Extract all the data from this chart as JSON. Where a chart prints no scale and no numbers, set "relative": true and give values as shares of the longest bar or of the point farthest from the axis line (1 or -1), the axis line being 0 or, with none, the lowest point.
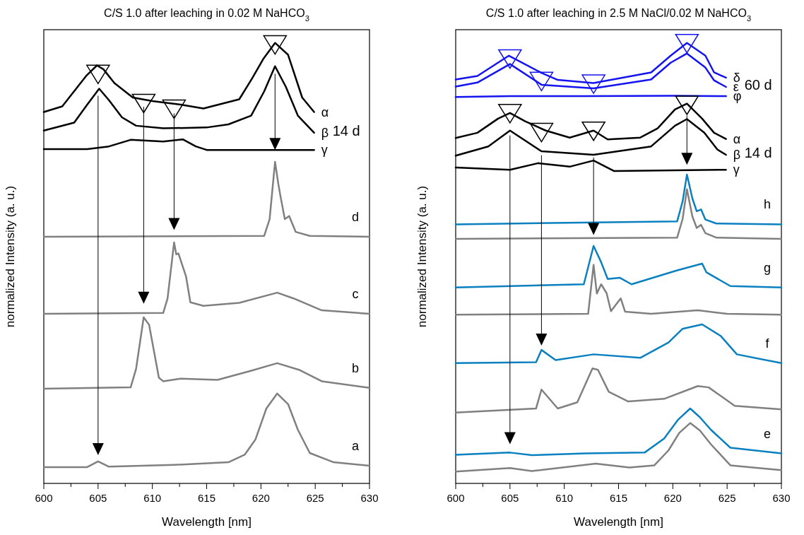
{
  "chart_data": [
    {
      "type": "line",
      "title": "C/S 1.0 after leaching in 0.02 M NaHCO$_{3}$",
      "xlabel": "Wavelength [nm]",
      "ylabel": "normalized Intensity (a. u.)",
      "relative": true,
      "tick_labels": "x",
      "xlim": [
        600,
        630
      ],
      "xticks": [
        600,
        {
          "value": 602.5,
          "label": null
        },
        605,
        {
          "value": 607.5,
          "label": null
        },
        610,
        {
          "value": 612.5,
          "label": null
        },
        615,
        {
          "value": 617.5,
          "label": null
        },
        620,
        {
          "value": 622.5,
          "label": null
        },
        625,
        {
          "value": 627.5,
          "label": null
        },
        630
      ],
      "annotations": [
        "14 d"
      ],
      "series": [
        {
          "name": "a",
          "color": "#808080",
          "x": [
            600,
            604,
            605,
            606,
            612,
            617,
            618.5,
            619.5,
            620.5,
            621.5,
            622.5,
            623.4,
            624.5,
            626.7,
            630
          ],
          "values": [
            0.037,
            0.037,
            0.05,
            0.038,
            0.042,
            0.048,
            0.065,
            0.1,
            0.17,
            0.204,
            0.18,
            0.122,
            0.069,
            0.048,
            0.04
          ]
        },
        {
          "name": "b",
          "color": "#808080",
          "x": [
            600,
            608,
            608.5,
            609.2,
            609.7,
            610.6,
            611,
            612.6,
            616,
            619,
            621.5,
            623.5,
            625.6,
            630
          ],
          "values": [
            0.215,
            0.218,
            0.26,
            0.377,
            0.36,
            0.24,
            0.232,
            0.238,
            0.235,
            0.255,
            0.273,
            0.258,
            0.232,
            0.217
          ]
        },
        {
          "name": "c",
          "color": "#808080",
          "x": [
            600,
            611,
            611.4,
            612,
            612.2,
            612.4,
            613.1,
            613.5,
            614.7,
            618,
            621.5,
            623,
            625.6,
            630
          ],
          "values": [
            0.385,
            0.387,
            0.42,
            0.547,
            0.52,
            0.522,
            0.47,
            0.411,
            0.403,
            0.41,
            0.433,
            0.42,
            0.393,
            0.385
          ]
        },
        {
          "name": "d",
          "color": "#808080",
          "x": [
            600,
            620.3,
            620.8,
            621.3,
            621.6,
            621.8,
            622.2,
            622.6,
            623.2,
            624.5,
            630
          ],
          "values": [
            0.56,
            0.562,
            0.6,
            0.73,
            0.68,
            0.652,
            0.6,
            0.607,
            0.571,
            0.562,
            0.56
          ]
        },
        {
          "name": "γ",
          "color": "#000000",
          "x": [
            600,
            604,
            606,
            608,
            611,
            612.8,
            614,
            615,
            624.9
          ],
          "values": [
            0.759,
            0.759,
            0.765,
            0.78,
            0.776,
            0.781,
            0.765,
            0.757,
            0.757
          ]
        },
        {
          "name": "β",
          "color": "#000000",
          "x": [
            600,
            602.8,
            604,
            605.1,
            606,
            607.2,
            608.5,
            611,
            615,
            617,
            619.1,
            620.3,
            621.3,
            622.3,
            623.4,
            624.9
          ],
          "values": [
            0.801,
            0.819,
            0.86,
            0.896,
            0.87,
            0.831,
            0.812,
            0.806,
            0.808,
            0.815,
            0.835,
            0.89,
            0.947,
            0.9,
            0.835,
            0.796
          ]
        },
        {
          "name": "α",
          "color": "#000000",
          "x": [
            600,
            601.7,
            603.9,
            604.9,
            605.5,
            606.5,
            608.2,
            610,
            612.6,
            614.7,
            618,
            619.2,
            620.2,
            621.3,
            622.5,
            623.8,
            624.9
          ],
          "values": [
            0.843,
            0.856,
            0.925,
            0.949,
            0.94,
            0.909,
            0.876,
            0.868,
            0.86,
            0.851,
            0.872,
            0.92,
            0.963,
            1,
            0.973,
            0.876,
            0.843
          ]
        },
        {
          "type": "scatter",
          "marker": "triangle",
          "color": "#000000",
          "x": [
            605,
            609.2,
            612,
            621.3
          ],
          "values": [
            0.93,
            0.864,
            0.851,
            0.997
          ]
        }
      ]
    },
    {
      "type": "line",
      "title": "C/S 1.0 after leaching in 2.5 M NaCl/0.02 M NaHCO$_{3}$",
      "xlabel": "Wavelength [nm]",
      "ylabel": "normalized Intensity (a. u.)",
      "relative": true,
      "tick_labels": "x",
      "xlim": [
        600,
        630
      ],
      "xticks": [
        600,
        {
          "value": 602.5,
          "label": null
        },
        605,
        {
          "value": 607.5,
          "label": null
        },
        610,
        {
          "value": 612.5,
          "label": null
        },
        615,
        {
          "value": 617.5,
          "label": null
        },
        620,
        {
          "value": 622.5,
          "label": null
        },
        625,
        {
          "value": 627.5,
          "label": null
        },
        630
      ],
      "annotations": [
        "60 d",
        "14 d"
      ],
      "series": [
        {
          "color": "#808080",
          "x": [
            600,
            605,
            607,
            612.9,
            616,
            618.3,
            619.6,
            620.6,
            621.6,
            622.5,
            623.5,
            625.3,
            630
          ],
          "values": [
            0.027,
            0.035,
            0.028,
            0.045,
            0.036,
            0.041,
            0.075,
            0.115,
            0.137,
            0.12,
            0.089,
            0.041,
            0.03
          ]
        },
        {
          "name": "e",
          "color": "#0a80c0",
          "x": [
            600,
            605,
            607,
            612,
            617.4,
            619.2,
            620.5,
            621.6,
            622.5,
            623.5,
            625.3,
            630
          ],
          "values": [
            0.065,
            0.07,
            0.064,
            0.068,
            0.07,
            0.102,
            0.145,
            0.17,
            0.15,
            0.122,
            0.081,
            0.068
          ]
        },
        {
          "color": "#808080",
          "x": [
            600,
            607.4,
            607.9,
            609.4,
            611.2,
            612.6,
            613.1,
            614.1,
            615.9,
            619.2,
            622.3,
            623.3,
            625.7,
            630
          ],
          "values": [
            0.161,
            0.17,
            0.213,
            0.17,
            0.184,
            0.261,
            0.258,
            0.208,
            0.186,
            0.192,
            0.221,
            0.218,
            0.176,
            0.168
          ]
        },
        {
          "name": "f",
          "color": "#0a80c0",
          "x": [
            600,
            607.4,
            607.9,
            609.2,
            612.7,
            617,
            619.6,
            620.9,
            622.7,
            624.4,
            625.9,
            630
          ],
          "values": [
            0.273,
            0.275,
            0.303,
            0.28,
            0.293,
            0.285,
            0.32,
            0.351,
            0.361,
            0.335,
            0.293,
            0.273
          ]
        },
        {
          "color": "#808080",
          "x": [
            600,
            612.2,
            612.7,
            613,
            613.4,
            613.9,
            614.3,
            615.2,
            615.6,
            618,
            622.3,
            625,
            630
          ],
          "values": [
            0.383,
            0.385,
            0.496,
            0.431,
            0.452,
            0.432,
            0.391,
            0.42,
            0.39,
            0.385,
            0.393,
            0.385,
            0.383
          ]
        },
        {
          "name": "g",
          "color": "#0a80c0",
          "x": [
            600,
            611.8,
            612.7,
            613.4,
            614,
            615.1,
            616.2,
            620.3,
            622.7,
            623.1,
            625.3,
            630
          ],
          "values": [
            0.445,
            0.452,
            0.539,
            0.502,
            0.464,
            0.467,
            0.452,
            0.483,
            0.499,
            0.479,
            0.448,
            0.445
          ]
        },
        {
          "color": "#808080",
          "x": [
            600,
            620.4,
            620.9,
            621.3,
            621.8,
            622.2,
            622.6,
            623,
            624,
            630
          ],
          "values": [
            0.555,
            0.558,
            0.6,
            0.668,
            0.606,
            0.58,
            0.587,
            0.568,
            0.558,
            0.555
          ]
        },
        {
          "name": "h",
          "color": "#0a80c0",
          "x": [
            600,
            620.4,
            620.9,
            621.3,
            621.8,
            622.2,
            622.6,
            623,
            624,
            630
          ],
          "values": [
            0.588,
            0.595,
            0.64,
            0.701,
            0.647,
            0.618,
            0.622,
            0.599,
            0.59,
            0.588
          ]
        },
        {
          "name": "γ",
          "color": "#000000",
          "x": [
            600,
            605,
            607.6,
            610.5,
            612.7,
            614.6,
            624.9
          ],
          "values": [
            0.717,
            0.712,
            0.727,
            0.719,
            0.733,
            0.709,
            0.712
          ]
        },
        {
          "name": "β",
          "color": "#000000",
          "x": [
            600,
            603,
            605,
            607.9,
            612.7,
            618,
            620.2,
            621.3,
            622.9,
            624.1,
            624.9
          ],
          "values": [
            0.744,
            0.765,
            0.801,
            0.754,
            0.746,
            0.765,
            0.812,
            0.827,
            0.796,
            0.758,
            0.746
          ]
        },
        {
          "name": "α",
          "color": "#000000",
          "x": [
            600,
            602,
            603.9,
            605,
            606.4,
            608.3,
            610.5,
            612.7,
            614,
            617,
            618.6,
            620.2,
            621.3,
            622.7,
            623.8,
            624.9
          ],
          "values": [
            0.784,
            0.796,
            0.828,
            0.841,
            0.822,
            0.801,
            0.785,
            0.801,
            0.781,
            0.785,
            0.806,
            0.849,
            0.862,
            0.828,
            0.796,
            0.782
          ]
        },
        {
          "name": "φ",
          "color": "#1414f0",
          "x": [
            600,
            605,
            612,
            620,
            624.9
          ],
          "values": [
            0.877,
            0.879,
            0.879,
            0.88,
            0.879
          ]
        },
        {
          "name": "ε",
          "color": "#1414f0",
          "x": [
            600,
            602,
            605,
            607.9,
            612.7,
            618,
            619.8,
            621.3,
            623,
            623.8,
            624.9
          ],
          "values": [
            0.901,
            0.91,
            0.952,
            0.905,
            0.897,
            0.917,
            0.955,
            0.976,
            0.944,
            0.915,
            0.9
          ]
        },
        {
          "name": "δ",
          "color": "#1414f0",
          "x": [
            600,
            602,
            604.9,
            607.9,
            609.4,
            612.7,
            618,
            619.8,
            621.3,
            623,
            623.8,
            624.9
          ],
          "values": [
            0.917,
            0.925,
            0.971,
            0.932,
            0.916,
            0.909,
            0.933,
            0.971,
            1,
            0.971,
            0.933,
            0.921
          ]
        },
        {
          "type": "scatter",
          "marker": "triangle",
          "color": "#000000",
          "x": [
            605,
            607.9,
            612.7,
            621.3
          ],
          "values": [
            0.841,
            0.798,
            0.801,
            0.86
          ]
        },
        {
          "type": "scatter",
          "marker": "triangle",
          "color": "#1414f0",
          "x": [
            605,
            607.9,
            612.7,
            621.3
          ],
          "values": [
            0.965,
            0.914,
            0.908,
            1
          ]
        }
      ]
    }
  ]
}
